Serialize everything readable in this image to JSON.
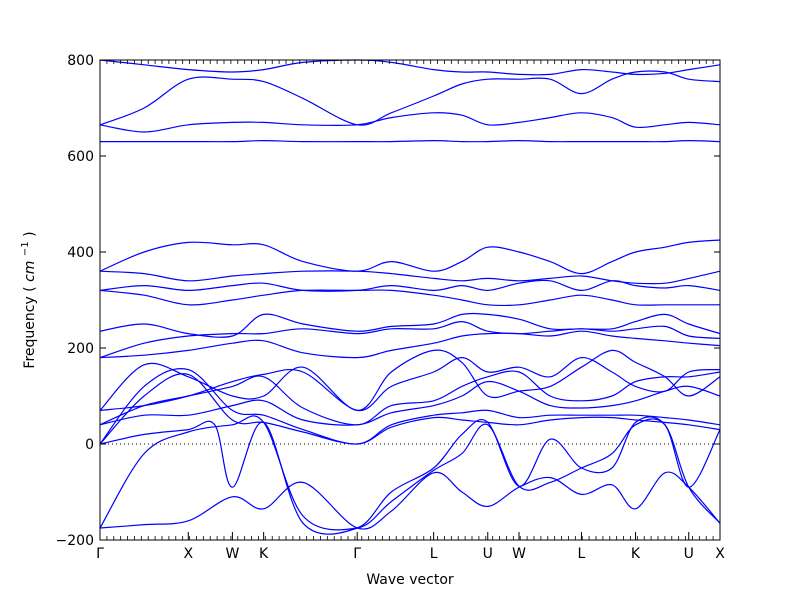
{
  "chart_data": {
    "type": "line",
    "title": "",
    "xlabel": "Wave vector",
    "ylabel": "Frequency",
    "ylabel_unit": "cm",
    "ylabel_unit_exponent": "−1",
    "ylim": [
      -200,
      800
    ],
    "yticks": [
      -200,
      0,
      200,
      400,
      600,
      800
    ],
    "grid": false,
    "zero_line": "dotted",
    "line_color": "#0000ff",
    "x_ticks": [
      {
        "label": "Γ",
        "x": 0.0
      },
      {
        "label": "X",
        "x": 1.0
      },
      {
        "label": "W",
        "x": 1.5
      },
      {
        "label": "K",
        "x": 1.854
      },
      {
        "label": "Γ",
        "x": 2.914
      },
      {
        "label": "L",
        "x": 3.78
      },
      {
        "label": "U",
        "x": 4.393
      },
      {
        "label": "W",
        "x": 4.747
      },
      {
        "label": "L",
        "x": 5.454
      },
      {
        "label": "K",
        "x": 6.067
      },
      {
        "label": "U",
        "x": 6.67
      },
      {
        "label": "X",
        "x": 7.024
      }
    ],
    "series": [
      {
        "x": [
          0,
          0.5,
          1,
          1.5,
          1.854,
          2.3,
          2.914,
          3.3,
          3.78,
          4.1,
          4.393,
          4.747,
          5.1,
          5.454,
          5.8,
          6.067,
          6.4,
          6.67,
          7.024
        ],
        "y": [
          -175,
          -168,
          -160,
          -110,
          -135,
          -80,
          -175,
          -140,
          -60,
          -100,
          -130,
          -90,
          -70,
          -105,
          -85,
          -135,
          -60,
          -90,
          -165
        ]
      },
      {
        "x": [
          0,
          0.5,
          1,
          1.5,
          1.854,
          2.3,
          2.914,
          3.3,
          3.78,
          4.1,
          4.393,
          4.747,
          5.1,
          5.454,
          5.8,
          6.067,
          6.4,
          6.67,
          7.024
        ],
        "y": [
          -175,
          -20,
          25,
          40,
          45,
          -150,
          -175,
          -120,
          -55,
          -20,
          40,
          -88,
          -80,
          -50,
          -20,
          40,
          40,
          -90,
          -165
        ]
      },
      {
        "x": [
          0,
          0.5,
          1,
          1.3,
          1.5,
          1.854,
          2.3,
          2.914,
          3.3,
          3.78,
          4.1,
          4.393,
          4.747,
          5.1,
          5.454,
          5.8,
          6.067,
          6.4,
          6.67,
          7.024
        ],
        "y": [
          0,
          20,
          30,
          40,
          -90,
          45,
          -165,
          -175,
          -100,
          -50,
          20,
          45,
          -88,
          10,
          -50,
          -50,
          45,
          40,
          -90,
          30
        ]
      },
      {
        "x": [
          0,
          0.5,
          1,
          1.5,
          1.854,
          2.3,
          2.914,
          3.3,
          3.78,
          4.1,
          4.393,
          4.747,
          5.1,
          5.454,
          5.8,
          6.067,
          6.4,
          6.67,
          7.024
        ],
        "y": [
          0,
          100,
          145,
          50,
          45,
          25,
          0,
          35,
          55,
          50,
          45,
          40,
          50,
          55,
          55,
          50,
          45,
          40,
          30
        ]
      },
      {
        "x": [
          0,
          0.5,
          1,
          1.5,
          1.854,
          2.3,
          2.914,
          3.3,
          3.78,
          4.1,
          4.393,
          4.747,
          5.1,
          5.454,
          5.8,
          6.067,
          6.4,
          6.67,
          7.024
        ],
        "y": [
          0,
          120,
          155,
          70,
          60,
          30,
          0,
          40,
          60,
          65,
          70,
          55,
          60,
          60,
          60,
          60,
          55,
          50,
          40
        ]
      },
      {
        "x": [
          0,
          0.5,
          1,
          1.5,
          1.854,
          2.3,
          2.914,
          3.3,
          3.78,
          4.1,
          4.393,
          4.747,
          5.1,
          5.454,
          5.8,
          6.067,
          6.4,
          6.67,
          7.024
        ],
        "y": [
          40,
          60,
          60,
          80,
          90,
          50,
          40,
          65,
          80,
          100,
          130,
          110,
          80,
          75,
          80,
          90,
          110,
          120,
          100
        ]
      },
      {
        "x": [
          0,
          0.5,
          1,
          1.5,
          1.854,
          2.3,
          2.914,
          3.3,
          3.78,
          4.1,
          4.393,
          4.747,
          5.1,
          5.454,
          5.8,
          6.067,
          6.4,
          6.67,
          7.024
        ],
        "y": [
          40,
          80,
          100,
          120,
          140,
          75,
          40,
          80,
          90,
          120,
          140,
          150,
          100,
          90,
          100,
          130,
          140,
          140,
          150
        ]
      },
      {
        "x": [
          0,
          0.5,
          1,
          1.5,
          1.854,
          2.3,
          2.914,
          3.3,
          3.78,
          4.1,
          4.393,
          4.747,
          5.1,
          5.454,
          5.8,
          6.067,
          6.4,
          6.67,
          7.024
        ],
        "y": [
          70,
          80,
          100,
          130,
          145,
          150,
          70,
          120,
          150,
          180,
          150,
          160,
          140,
          180,
          150,
          120,
          110,
          150,
          155
        ]
      },
      {
        "x": [
          0,
          0.5,
          1,
          1.5,
          1.854,
          2.3,
          2.914,
          3.3,
          3.78,
          4.1,
          4.393,
          4.747,
          5.1,
          5.454,
          5.8,
          6.067,
          6.4,
          6.67,
          7.024
        ],
        "y": [
          70,
          165,
          140,
          100,
          100,
          160,
          70,
          150,
          195,
          170,
          100,
          110,
          120,
          160,
          195,
          170,
          140,
          100,
          140
        ]
      },
      {
        "x": [
          0,
          0.5,
          1,
          1.5,
          1.854,
          2.3,
          2.914,
          3.3,
          3.78,
          4.1,
          4.393,
          4.747,
          5.1,
          5.454,
          5.8,
          6.067,
          6.4,
          6.67,
          7.024
        ],
        "y": [
          180,
          185,
          195,
          210,
          215,
          190,
          180,
          195,
          210,
          225,
          230,
          230,
          225,
          235,
          225,
          220,
          215,
          210,
          205
        ]
      },
      {
        "x": [
          0,
          0.5,
          1,
          1.5,
          1.854,
          2.3,
          2.914,
          3.3,
          3.78,
          4.1,
          4.393,
          4.747,
          5.1,
          5.454,
          5.8,
          6.067,
          6.4,
          6.67,
          7.024
        ],
        "y": [
          180,
          210,
          225,
          230,
          230,
          240,
          230,
          240,
          240,
          255,
          235,
          230,
          235,
          240,
          235,
          240,
          245,
          225,
          220
        ]
      },
      {
        "x": [
          0,
          0.5,
          1,
          1.5,
          1.854,
          2.3,
          2.914,
          3.3,
          3.78,
          4.1,
          4.393,
          4.747,
          5.1,
          5.454,
          5.8,
          6.067,
          6.4,
          6.67,
          7.024
        ],
        "y": [
          235,
          250,
          230,
          225,
          270,
          250,
          235,
          245,
          250,
          270,
          270,
          260,
          240,
          240,
          240,
          255,
          270,
          250,
          230
        ]
      },
      {
        "x": [
          0,
          0.5,
          1,
          1.5,
          1.854,
          2.3,
          2.914,
          3.3,
          3.78,
          4.1,
          4.393,
          4.747,
          5.1,
          5.454,
          5.8,
          6.067,
          6.4,
          6.67,
          7.024
        ],
        "y": [
          320,
          310,
          290,
          300,
          310,
          320,
          320,
          320,
          310,
          300,
          290,
          290,
          300,
          310,
          300,
          290,
          290,
          290,
          290
        ]
      },
      {
        "x": [
          0,
          0.5,
          1,
          1.5,
          1.854,
          2.3,
          2.914,
          3.3,
          3.78,
          4.1,
          4.393,
          4.747,
          5.1,
          5.454,
          5.8,
          6.067,
          6.4,
          6.67,
          7.024
        ],
        "y": [
          320,
          330,
          320,
          330,
          335,
          320,
          320,
          330,
          320,
          330,
          320,
          335,
          340,
          320,
          340,
          330,
          325,
          330,
          320
        ]
      },
      {
        "x": [
          0,
          0.5,
          1,
          1.5,
          1.854,
          2.3,
          2.914,
          3.3,
          3.78,
          4.1,
          4.393,
          4.747,
          5.1,
          5.454,
          5.8,
          6.067,
          6.4,
          6.67,
          7.024
        ],
        "y": [
          360,
          355,
          340,
          350,
          355,
          360,
          360,
          355,
          345,
          340,
          345,
          340,
          345,
          350,
          340,
          335,
          335,
          345,
          360
        ]
      },
      {
        "x": [
          0,
          0.5,
          1,
          1.5,
          1.854,
          2.3,
          2.914,
          3.3,
          3.78,
          4.1,
          4.393,
          4.747,
          5.1,
          5.454,
          5.8,
          6.067,
          6.4,
          6.67,
          7.024
        ],
        "y": [
          360,
          400,
          420,
          415,
          415,
          380,
          360,
          380,
          360,
          380,
          410,
          400,
          380,
          355,
          380,
          400,
          410,
          420,
          425
        ]
      },
      {
        "x": [
          0,
          0.5,
          1,
          1.5,
          1.854,
          2.3,
          2.914,
          3.3,
          3.78,
          4.1,
          4.393,
          4.747,
          5.1,
          5.454,
          5.8,
          6.067,
          6.4,
          6.67,
          7.024
        ],
        "y": [
          630,
          630,
          630,
          630,
          632,
          630,
          630,
          630,
          632,
          630,
          630,
          632,
          630,
          630,
          630,
          630,
          630,
          632,
          630
        ]
      },
      {
        "x": [
          0,
          0.5,
          1,
          1.5,
          1.854,
          2.3,
          2.914,
          3.3,
          3.78,
          4.1,
          4.393,
          4.747,
          5.1,
          5.454,
          5.8,
          6.067,
          6.4,
          6.67,
          7.024
        ],
        "y": [
          665,
          650,
          665,
          670,
          670,
          665,
          665,
          680,
          690,
          685,
          665,
          670,
          680,
          690,
          680,
          660,
          665,
          670,
          665
        ]
      },
      {
        "x": [
          0,
          0.5,
          1,
          1.5,
          1.854,
          2.3,
          2.914,
          3.3,
          3.78,
          4.1,
          4.393,
          4.747,
          5.1,
          5.454,
          5.8,
          6.067,
          6.4,
          6.67,
          7.024
        ],
        "y": [
          665,
          700,
          760,
          760,
          755,
          720,
          665,
          690,
          725,
          750,
          760,
          760,
          760,
          730,
          760,
          775,
          775,
          760,
          755
        ]
      },
      {
        "x": [
          0,
          0.5,
          1,
          1.5,
          1.854,
          2.3,
          2.914,
          3.3,
          3.78,
          4.1,
          4.393,
          4.747,
          5.1,
          5.454,
          5.8,
          6.067,
          6.4,
          6.67,
          7.024
        ],
        "y": [
          800,
          790,
          780,
          775,
          780,
          795,
          800,
          795,
          780,
          775,
          775,
          770,
          770,
          780,
          775,
          770,
          772,
          780,
          790
        ]
      }
    ]
  }
}
